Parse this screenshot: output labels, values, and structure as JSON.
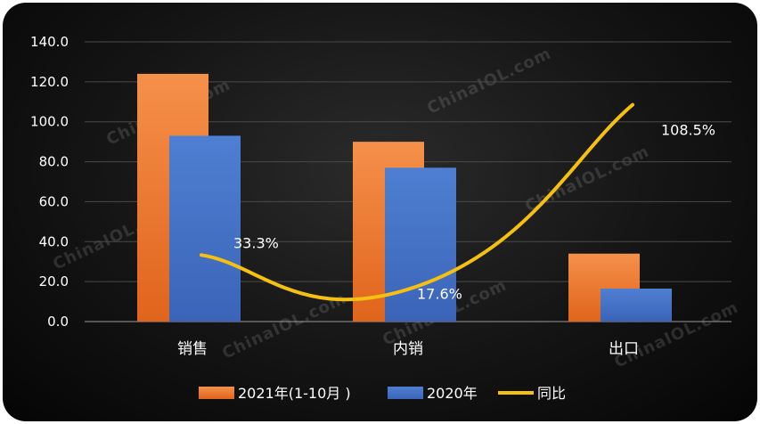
{
  "chart_data": {
    "type": "bar",
    "categories": [
      "销售",
      "内销",
      "出口"
    ],
    "series": [
      {
        "name": "2021年(1-10月 )",
        "type": "bar",
        "color": "#f0843c",
        "values": [
          124.0,
          90.0,
          34.0
        ]
      },
      {
        "name": "2020年",
        "type": "bar",
        "color": "#4472c4",
        "values": [
          93.0,
          77.0,
          16.5
        ]
      },
      {
        "name": "同比",
        "type": "line",
        "color": "#f5c010",
        "values": [
          33.3,
          17.6,
          108.5
        ],
        "labels": [
          "33.3%",
          "17.6%",
          "108.5%"
        ]
      }
    ],
    "ylim": [
      0,
      140
    ],
    "yticks": [
      "0.0",
      "20.0",
      "40.0",
      "60.0",
      "80.0",
      "100.0",
      "120.0",
      "140.0"
    ],
    "grid": true,
    "legend": "bottom"
  },
  "watermark": "ChinaIOL.com"
}
